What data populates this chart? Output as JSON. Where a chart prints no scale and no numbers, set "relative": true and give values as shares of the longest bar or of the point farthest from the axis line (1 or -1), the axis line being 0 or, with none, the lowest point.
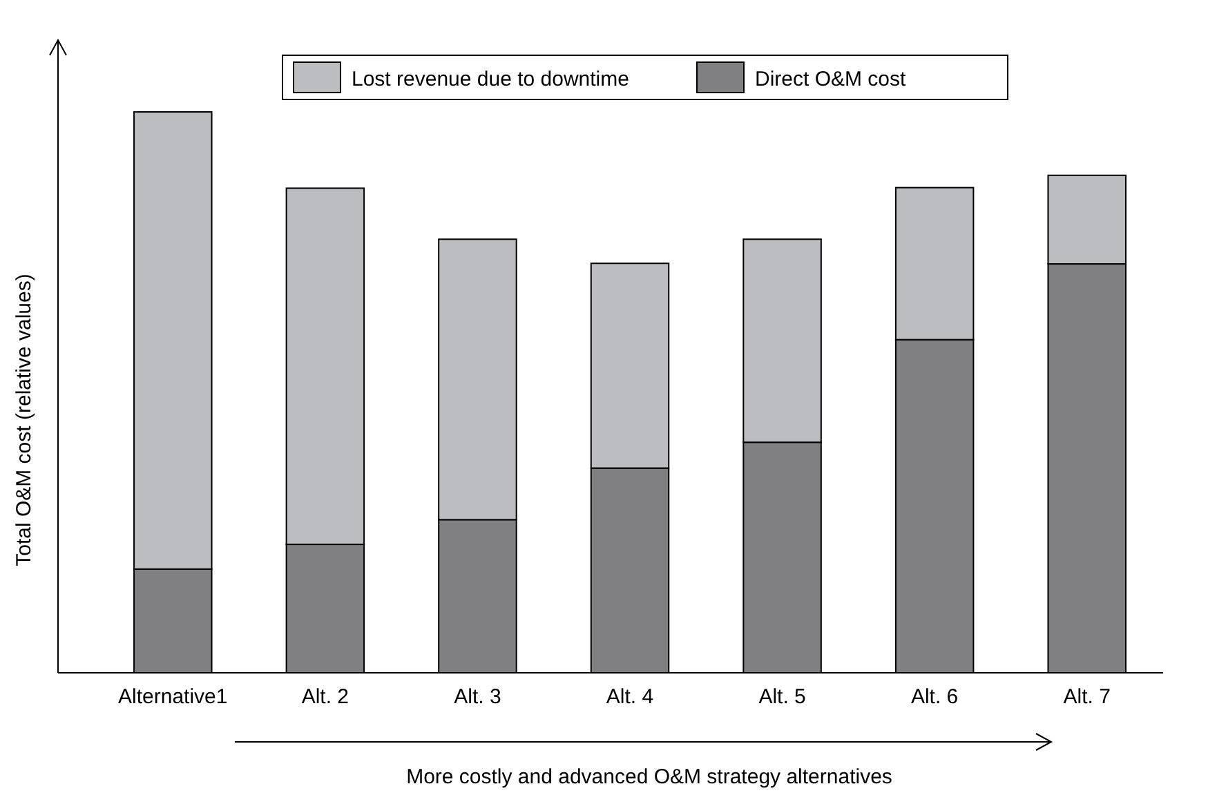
{
  "chart_data": {
    "type": "bar",
    "stacked": true,
    "relative": true,
    "ylabel": "Total O&M cost (relative values)",
    "xlabel": "More costly and advanced O&M strategy alternatives",
    "categories": [
      "Alternative1",
      "Alt. 2",
      "Alt. 3",
      "Alt. 4",
      "Alt. 5",
      "Alt. 6",
      "Alt. 7"
    ],
    "legend": "top",
    "series": [
      {
        "name": "Direct O&M cost",
        "color": "#808083",
        "values": [
          0.185,
          0.229,
          0.273,
          0.365,
          0.411,
          0.594,
          0.729
        ]
      },
      {
        "name": "Lost revenue due to downtime",
        "color": "#bcbdc1",
        "values": [
          0.815,
          0.635,
          0.5,
          0.365,
          0.362,
          0.271,
          0.158
        ]
      }
    ]
  }
}
